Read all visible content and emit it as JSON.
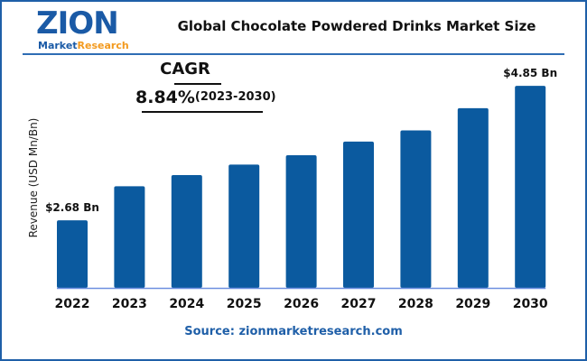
{
  "logo": {
    "word": "ZION",
    "sub1": "Market",
    "sub2": "Research"
  },
  "title": "Global Chocolate Powdered Drinks Market Size",
  "cagr": {
    "label": "CAGR",
    "value": "8.84%",
    "period": "(2023-2030)"
  },
  "source": "Source: zionmarketresearch.com",
  "colors": {
    "bar": "#0b5a9f",
    "frame": "#1f5fa8",
    "axis": "#6e8fe0",
    "source": "#1f5fa8"
  },
  "chart_data": {
    "type": "bar",
    "title": "Global Chocolate Powdered Drinks Market Size",
    "ylabel": "Revenue (USD Mn/Bn)",
    "xlabel": "",
    "categories": [
      "2022",
      "2023",
      "2024",
      "2025",
      "2026",
      "2027",
      "2028",
      "2029",
      "2030"
    ],
    "values": [
      2.68,
      3.23,
      3.41,
      3.58,
      3.73,
      3.95,
      4.13,
      4.49,
      4.85
    ],
    "data_labels": {
      "0": "$2.68 Bn",
      "8": "$4.85 Bn"
    },
    "grid": false
  }
}
